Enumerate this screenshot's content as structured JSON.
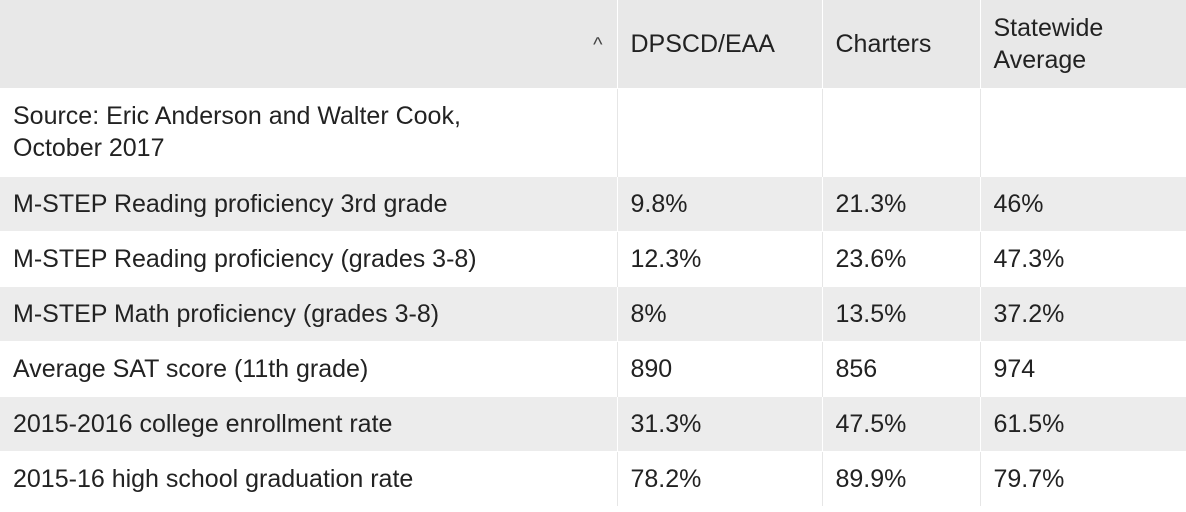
{
  "chart_data": {
    "type": "table",
    "columns": [
      "",
      "DPSCD/EAA",
      "Charters",
      "Statewide Average"
    ],
    "source": "Source: Eric Anderson and Walter Cook, October 2017",
    "rows": [
      {
        "label": "M-STEP Reading proficiency 3rd grade",
        "values": [
          "9.8%",
          "21.3%",
          "46%"
        ]
      },
      {
        "label": "M-STEP Reading proficiency (grades 3-8)",
        "values": [
          "12.3%",
          "23.6%",
          "47.3%"
        ]
      },
      {
        "label": "M-STEP Math proficiency (grades 3-8)",
        "values": [
          "8%",
          "13.5%",
          "37.2%"
        ]
      },
      {
        "label": "Average SAT score (11th grade)",
        "values": [
          "890",
          "856",
          "974"
        ]
      },
      {
        "label": "2015-2016 college enrollment rate",
        "values": [
          "31.3%",
          "47.5%",
          "61.5%"
        ]
      },
      {
        "label": "2015-16 high school graduation rate",
        "values": [
          "78.2%",
          "89.9%",
          "79.7%"
        ]
      }
    ]
  },
  "header": {
    "sort_icon": "chevron-up-icon",
    "sort_glyph": "^",
    "col1": "DPSCD/EAA",
    "col2": "Charters",
    "col3_line1": "Statewide",
    "col3_line2": "Average"
  },
  "source_line1": "Source: Eric Anderson and Walter Cook,",
  "source_line2": "October 2017",
  "colors": {
    "header_bg": "#e8e8e8",
    "shaded_row": "#ececec",
    "text": "#222222"
  }
}
